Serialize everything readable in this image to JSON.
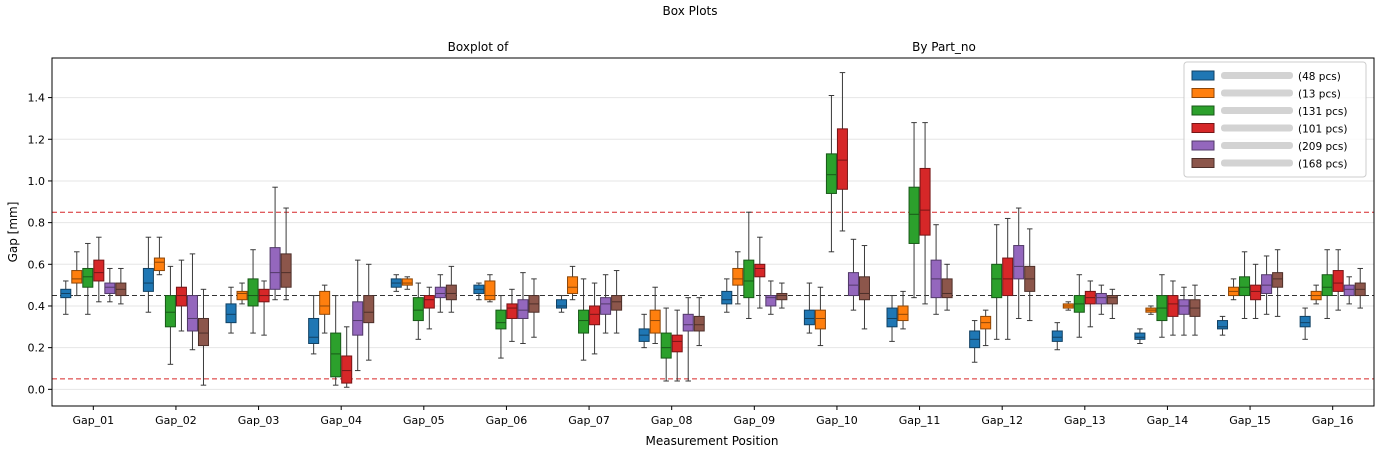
{
  "chart_data": {
    "type": "box",
    "suptitle": "Box Plots",
    "subtitle_left": "Boxplot of",
    "subtitle_right": "By Part_no",
    "xlabel": "Measurement Position",
    "ylabel": "Gap [mm]",
    "ylim": [
      -0.08,
      1.59
    ],
    "yticks": [
      "0.0",
      "0.2",
      "0.4",
      "0.6",
      "0.8",
      "1.0",
      "1.2",
      "1.4"
    ],
    "grid": true,
    "legend_position": "upper-right",
    "reference_lines": [
      {
        "y": 0.05,
        "style": "dashed",
        "color": "#d62728"
      },
      {
        "y": 0.45,
        "style": "dashed",
        "color": "#333333"
      },
      {
        "y": 0.85,
        "style": "dashed",
        "color": "#d62728"
      }
    ],
    "categories": [
      "Gap_01",
      "Gap_02",
      "Gap_03",
      "Gap_04",
      "Gap_05",
      "Gap_06",
      "Gap_07",
      "Gap_08",
      "Gap_09",
      "Gap_10",
      "Gap_11",
      "Gap_12",
      "Gap_13",
      "Gap_14",
      "Gap_15",
      "Gap_16"
    ],
    "series": [
      {
        "legend_label": "(48 pcs)",
        "color": "#1f77b4",
        "boxes": [
          [
            0.36,
            0.44,
            0.46,
            0.48,
            0.52
          ],
          [
            0.37,
            0.47,
            0.51,
            0.58,
            0.73
          ],
          [
            0.27,
            0.32,
            0.36,
            0.41,
            0.49
          ],
          [
            0.17,
            0.22,
            0.25,
            0.34,
            0.45
          ],
          [
            0.47,
            0.49,
            0.51,
            0.53,
            0.55
          ],
          [
            0.43,
            0.46,
            0.48,
            0.5,
            0.51
          ],
          [
            0.37,
            0.39,
            0.4,
            0.43,
            0.45
          ],
          [
            0.2,
            0.23,
            0.26,
            0.29,
            0.36
          ],
          [
            0.37,
            0.41,
            0.43,
            0.47,
            0.53
          ],
          [
            0.27,
            0.31,
            0.34,
            0.38,
            0.51
          ],
          [
            0.23,
            0.3,
            0.34,
            0.39,
            0.45
          ],
          [
            0.13,
            0.2,
            0.24,
            0.28,
            0.33
          ],
          [
            0.19,
            0.23,
            0.25,
            0.28,
            0.32
          ],
          [
            0.22,
            0.24,
            0.25,
            0.27,
            0.29
          ],
          [
            0.26,
            0.29,
            0.3,
            0.33,
            0.35
          ],
          [
            0.24,
            0.3,
            0.32,
            0.35,
            0.39
          ]
        ]
      },
      {
        "legend_label": "(13 pcs)",
        "color": "#ff7f0e",
        "boxes": [
          [
            0.45,
            0.51,
            0.53,
            0.57,
            0.66
          ],
          [
            0.55,
            0.57,
            0.61,
            0.63,
            0.73
          ],
          [
            0.41,
            0.43,
            0.46,
            0.47,
            0.51
          ],
          [
            0.27,
            0.36,
            0.4,
            0.47,
            0.5
          ],
          [
            0.48,
            0.5,
            0.51,
            0.53,
            0.54
          ],
          [
            0.42,
            0.43,
            0.45,
            0.52,
            0.55
          ],
          [
            0.43,
            0.46,
            0.49,
            0.54,
            0.59
          ],
          [
            0.22,
            0.27,
            0.33,
            0.38,
            0.49
          ],
          [
            0.41,
            0.5,
            0.53,
            0.58,
            0.66
          ],
          [
            0.21,
            0.29,
            0.34,
            0.38,
            0.49
          ],
          [
            0.29,
            0.33,
            0.36,
            0.4,
            0.47
          ],
          [
            0.21,
            0.29,
            0.32,
            0.35,
            0.38
          ],
          [
            0.38,
            0.39,
            0.4,
            0.41,
            0.42
          ],
          [
            0.36,
            0.37,
            0.38,
            0.39,
            0.4
          ],
          [
            0.43,
            0.45,
            0.47,
            0.49,
            0.53
          ],
          [
            0.41,
            0.43,
            0.45,
            0.47,
            0.5
          ]
        ]
      },
      {
        "legend_label": "(131 pcs)",
        "color": "#2ca02c",
        "boxes": [
          [
            0.36,
            0.49,
            0.54,
            0.58,
            0.7
          ],
          [
            0.12,
            0.3,
            0.37,
            0.45,
            0.59
          ],
          [
            0.27,
            0.4,
            0.45,
            0.53,
            0.67
          ],
          [
            0.02,
            0.06,
            0.17,
            0.27,
            0.45
          ],
          [
            0.24,
            0.33,
            0.38,
            0.44,
            0.51
          ],
          [
            0.15,
            0.29,
            0.32,
            0.38,
            0.45
          ],
          [
            0.14,
            0.27,
            0.33,
            0.38,
            0.53
          ],
          [
            0.04,
            0.15,
            0.2,
            0.27,
            0.39
          ],
          [
            0.34,
            0.44,
            0.52,
            0.62,
            0.85
          ],
          [
            0.66,
            0.94,
            1.03,
            1.13,
            1.41
          ],
          [
            0.44,
            0.7,
            0.84,
            0.97,
            1.28
          ],
          [
            0.24,
            0.44,
            0.53,
            0.6,
            0.79
          ],
          [
            0.25,
            0.37,
            0.41,
            0.45,
            0.55
          ],
          [
            0.25,
            0.33,
            0.39,
            0.45,
            0.55
          ],
          [
            0.34,
            0.45,
            0.49,
            0.54,
            0.66
          ],
          [
            0.34,
            0.45,
            0.49,
            0.55,
            0.67
          ]
        ]
      },
      {
        "legend_label": "(101 pcs)",
        "color": "#d62728",
        "boxes": [
          [
            0.42,
            0.52,
            0.56,
            0.62,
            0.73
          ],
          [
            0.28,
            0.4,
            0.45,
            0.49,
            0.62
          ],
          [
            0.26,
            0.42,
            0.45,
            0.48,
            0.52
          ],
          [
            0.01,
            0.03,
            0.09,
            0.16,
            0.3
          ],
          [
            0.29,
            0.39,
            0.43,
            0.45,
            0.49
          ],
          [
            0.23,
            0.34,
            0.39,
            0.41,
            0.48
          ],
          [
            0.17,
            0.31,
            0.36,
            0.4,
            0.51
          ],
          [
            0.04,
            0.18,
            0.23,
            0.26,
            0.38
          ],
          [
            0.39,
            0.54,
            0.58,
            0.6,
            0.73
          ],
          [
            0.76,
            0.96,
            1.1,
            1.25,
            1.52
          ],
          [
            0.41,
            0.74,
            0.86,
            1.06,
            1.28
          ],
          [
            0.24,
            0.45,
            0.53,
            0.63,
            0.82
          ],
          [
            0.3,
            0.41,
            0.44,
            0.47,
            0.52
          ],
          [
            0.26,
            0.35,
            0.41,
            0.45,
            0.52
          ],
          [
            0.34,
            0.43,
            0.47,
            0.5,
            0.6
          ],
          [
            0.38,
            0.47,
            0.51,
            0.57,
            0.67
          ]
        ]
      },
      {
        "legend_label": "(209 pcs)",
        "color": "#9467bd",
        "boxes": [
          [
            0.42,
            0.46,
            0.49,
            0.51,
            0.58
          ],
          [
            0.19,
            0.28,
            0.34,
            0.45,
            0.65
          ],
          [
            0.43,
            0.48,
            0.56,
            0.68,
            0.97
          ],
          [
            0.09,
            0.26,
            0.33,
            0.42,
            0.62
          ],
          [
            0.37,
            0.44,
            0.46,
            0.49,
            0.55
          ],
          [
            0.22,
            0.34,
            0.38,
            0.43,
            0.56
          ],
          [
            0.27,
            0.36,
            0.41,
            0.44,
            0.55
          ],
          [
            0.04,
            0.28,
            0.31,
            0.36,
            0.44
          ],
          [
            0.36,
            0.4,
            0.44,
            0.45,
            0.52
          ],
          [
            0.38,
            0.45,
            0.5,
            0.56,
            0.72
          ],
          [
            0.36,
            0.44,
            0.53,
            0.62,
            0.79
          ],
          [
            0.34,
            0.53,
            0.59,
            0.69,
            0.87
          ],
          [
            0.36,
            0.41,
            0.44,
            0.46,
            0.5
          ],
          [
            0.26,
            0.36,
            0.4,
            0.43,
            0.49
          ],
          [
            0.36,
            0.46,
            0.5,
            0.55,
            0.64
          ],
          [
            0.41,
            0.45,
            0.48,
            0.5,
            0.54
          ]
        ]
      },
      {
        "legend_label": "(168 pcs)",
        "color": "#8c564b",
        "boxes": [
          [
            0.41,
            0.45,
            0.48,
            0.51,
            0.58
          ],
          [
            0.02,
            0.21,
            0.27,
            0.34,
            0.48
          ],
          [
            0.43,
            0.49,
            0.56,
            0.65,
            0.87
          ],
          [
            0.14,
            0.32,
            0.37,
            0.45,
            0.6
          ],
          [
            0.37,
            0.43,
            0.46,
            0.5,
            0.59
          ],
          [
            0.25,
            0.37,
            0.41,
            0.45,
            0.53
          ],
          [
            0.27,
            0.38,
            0.42,
            0.45,
            0.57
          ],
          [
            0.21,
            0.28,
            0.31,
            0.35,
            0.44
          ],
          [
            0.39,
            0.43,
            0.45,
            0.46,
            0.51
          ],
          [
            0.29,
            0.43,
            0.46,
            0.54,
            0.69
          ],
          [
            0.38,
            0.44,
            0.46,
            0.53,
            0.6
          ],
          [
            0.33,
            0.47,
            0.53,
            0.59,
            0.77
          ],
          [
            0.34,
            0.41,
            0.44,
            0.45,
            0.48
          ],
          [
            0.26,
            0.35,
            0.39,
            0.43,
            0.5
          ],
          [
            0.35,
            0.49,
            0.53,
            0.56,
            0.67
          ],
          [
            0.39,
            0.45,
            0.48,
            0.51,
            0.58
          ]
        ]
      }
    ]
  }
}
